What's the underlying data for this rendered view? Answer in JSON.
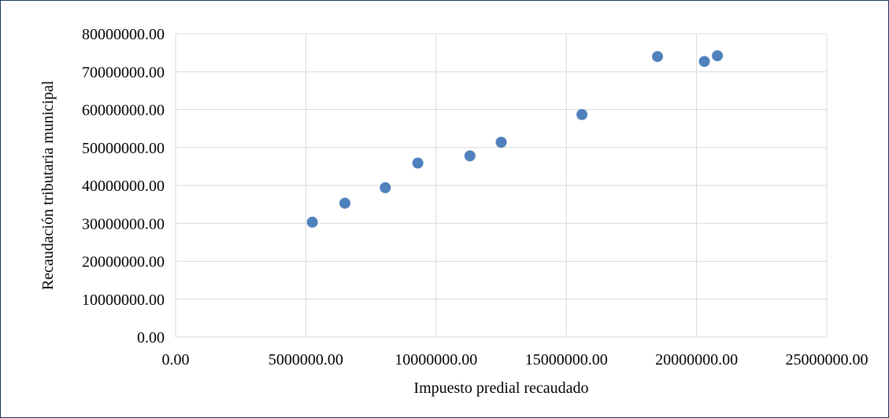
{
  "chart_data": {
    "type": "scatter",
    "title": "",
    "xlabel": "Impuesto predial recaudado",
    "ylabel": "Recaudación tributaria municipal",
    "xlim": [
      0,
      25000000
    ],
    "ylim": [
      0,
      80000000
    ],
    "x_ticks": [
      0,
      5000000,
      10000000,
      15000000,
      20000000,
      25000000
    ],
    "y_ticks": [
      0,
      10000000,
      20000000,
      30000000,
      40000000,
      50000000,
      60000000,
      70000000,
      80000000
    ],
    "x_tick_labels": [
      "0.00",
      "5000000.00",
      "10000000.00",
      "15000000.00",
      "20000000.00",
      "25000000.00"
    ],
    "y_tick_labels": [
      "0.00",
      "10000000.00",
      "20000000.00",
      "30000000.00",
      "40000000.00",
      "50000000.00",
      "60000000.00",
      "70000000.00",
      "80000000.00"
    ],
    "grid": true,
    "legend": "none",
    "marker_color": "#4f81bd",
    "points": [
      {
        "x": 5250000,
        "y": 30300000
      },
      {
        "x": 6500000,
        "y": 35300000
      },
      {
        "x": 8050000,
        "y": 39400000
      },
      {
        "x": 9300000,
        "y": 45900000
      },
      {
        "x": 11300000,
        "y": 47800000
      },
      {
        "x": 12500000,
        "y": 51400000
      },
      {
        "x": 15600000,
        "y": 58700000
      },
      {
        "x": 18500000,
        "y": 74000000
      },
      {
        "x": 20300000,
        "y": 72700000
      },
      {
        "x": 20800000,
        "y": 74200000
      }
    ]
  }
}
